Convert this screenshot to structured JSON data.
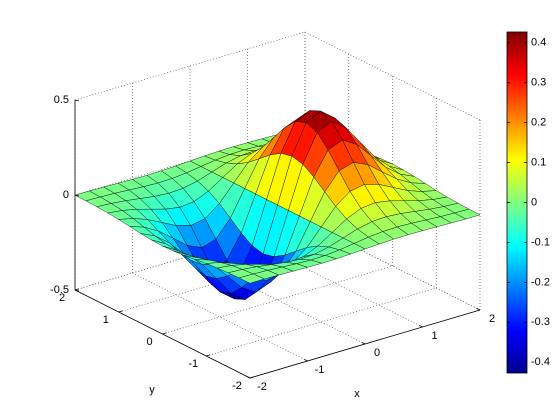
{
  "chart_data": {
    "type": "surface",
    "xlabel": "x",
    "ylabel": "y",
    "xlim": [
      -2,
      2
    ],
    "ylim": [
      -2,
      2
    ],
    "zlim": [
      -0.5,
      0.5
    ],
    "xticks": [
      -2,
      -1,
      0,
      1,
      2
    ],
    "yticks": [
      -2,
      -1,
      0,
      1,
      2
    ],
    "zticks": [
      -0.5,
      0,
      0.5
    ],
    "grid": true,
    "colormap": "jet",
    "colorbar": {
      "ticks": [
        -0.4,
        -0.3,
        -0.2,
        -0.1,
        0,
        0.1,
        0.2,
        0.3,
        0.4
      ]
    },
    "x": [
      -2,
      -1.75,
      -1.5,
      -1.25,
      -1,
      -0.75,
      -0.5,
      -0.25,
      0,
      0.25,
      0.5,
      0.75,
      1,
      1.25,
      1.5,
      1.75,
      2
    ],
    "y": [
      -2,
      -1.75,
      -1.5,
      -1.25,
      -1,
      -0.75,
      -0.5,
      -0.25,
      0,
      0.25,
      0.5,
      0.75,
      1,
      1.25,
      1.5,
      1.75,
      2
    ],
    "z": [
      [
        -0.001,
        -0.001,
        -0.003,
        -0.005,
        -0.007,
        -0.008,
        -0.007,
        -0.004,
        0,
        0.004,
        0.007,
        0.008,
        0.007,
        0.005,
        0.003,
        0.001,
        0.001
      ],
      [
        -0.002,
        -0.004,
        -0.007,
        -0.012,
        -0.017,
        -0.02,
        -0.018,
        -0.011,
        0,
        0.011,
        0.018,
        0.02,
        0.017,
        0.012,
        0.007,
        0.004,
        0.002
      ],
      [
        -0.004,
        -0.009,
        -0.017,
        -0.028,
        -0.039,
        -0.045,
        -0.041,
        -0.025,
        0,
        0.025,
        0.041,
        0.045,
        0.039,
        0.028,
        0.017,
        0.009,
        0.004
      ],
      [
        -0.008,
        -0.017,
        -0.033,
        -0.055,
        -0.077,
        -0.09,
        -0.082,
        -0.049,
        0,
        0.049,
        0.082,
        0.09,
        0.077,
        0.055,
        0.033,
        0.017,
        0.008
      ],
      [
        -0.013,
        -0.03,
        -0.058,
        -0.096,
        -0.135,
        -0.157,
        -0.143,
        -0.086,
        0,
        0.086,
        0.143,
        0.157,
        0.135,
        0.096,
        0.058,
        0.03,
        0.013
      ],
      [
        -0.021,
        -0.047,
        -0.09,
        -0.149,
        -0.21,
        -0.244,
        -0.222,
        -0.134,
        0,
        0.134,
        0.222,
        0.244,
        0.21,
        0.149,
        0.09,
        0.047,
        0.021
      ],
      [
        -0.029,
        -0.064,
        -0.123,
        -0.204,
        -0.287,
        -0.333,
        -0.303,
        -0.183,
        0,
        0.183,
        0.303,
        0.333,
        0.287,
        0.204,
        0.123,
        0.064,
        0.029
      ],
      [
        -0.034,
        -0.077,
        -0.149,
        -0.246,
        -0.346,
        -0.401,
        -0.366,
        -0.221,
        0,
        0.221,
        0.366,
        0.401,
        0.346,
        0.246,
        0.149,
        0.077,
        0.034
      ],
      [
        -0.037,
        -0.082,
        -0.158,
        -0.262,
        -0.368,
        -0.427,
        -0.389,
        -0.235,
        0,
        0.235,
        0.389,
        0.427,
        0.368,
        0.262,
        0.158,
        0.082,
        0.037
      ],
      [
        -0.034,
        -0.077,
        -0.149,
        -0.246,
        -0.346,
        -0.401,
        -0.366,
        -0.221,
        0,
        0.221,
        0.366,
        0.401,
        0.346,
        0.246,
        0.149,
        0.077,
        0.034
      ],
      [
        -0.029,
        -0.064,
        -0.123,
        -0.204,
        -0.287,
        -0.333,
        -0.303,
        -0.183,
        0,
        0.183,
        0.303,
        0.333,
        0.287,
        0.204,
        0.123,
        0.064,
        0.029
      ],
      [
        -0.021,
        -0.047,
        -0.09,
        -0.149,
        -0.21,
        -0.244,
        -0.222,
        -0.134,
        0,
        0.134,
        0.222,
        0.244,
        0.21,
        0.149,
        0.09,
        0.047,
        0.021
      ],
      [
        -0.013,
        -0.03,
        -0.058,
        -0.096,
        -0.135,
        -0.157,
        -0.143,
        -0.086,
        0,
        0.086,
        0.143,
        0.157,
        0.135,
        0.096,
        0.058,
        0.03,
        0.013
      ],
      [
        -0.008,
        -0.017,
        -0.033,
        -0.055,
        -0.077,
        -0.09,
        -0.082,
        -0.049,
        0,
        0.049,
        0.082,
        0.09,
        0.077,
        0.055,
        0.033,
        0.017,
        0.008
      ],
      [
        -0.004,
        -0.009,
        -0.017,
        -0.028,
        -0.039,
        -0.045,
        -0.041,
        -0.025,
        0,
        0.025,
        0.041,
        0.045,
        0.039,
        0.028,
        0.017,
        0.009,
        0.004
      ],
      [
        -0.002,
        -0.004,
        -0.007,
        -0.012,
        -0.017,
        -0.02,
        -0.018,
        -0.011,
        0,
        0.011,
        0.018,
        0.02,
        0.017,
        0.012,
        0.007,
        0.004,
        0.002
      ],
      [
        -0.001,
        -0.001,
        -0.003,
        -0.005,
        -0.007,
        -0.008,
        -0.007,
        -0.004,
        0,
        0.004,
        0.007,
        0.008,
        0.007,
        0.005,
        0.003,
        0.001,
        0.001
      ]
    ]
  }
}
